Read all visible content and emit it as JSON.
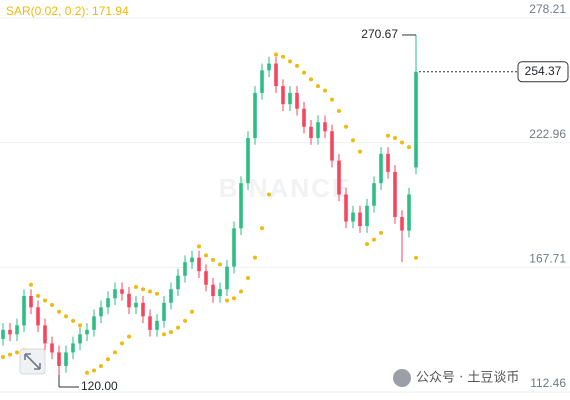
{
  "chart_data": {
    "type": "candlestick",
    "indicator_label": "SAR(0.02, 0.2): 171.94",
    "watermark": "BINANCE",
    "footer_watermark": "公众号 · 土豆谈币",
    "min_label": "120.00",
    "up_color": "#2ebd85",
    "down_color": "#f6465d",
    "sar_color": "#f0b90b",
    "ylim": [
      108.92,
      286.17
    ],
    "yticks": [
      278.21,
      222.96,
      167.71,
      112.46
    ],
    "grid": true,
    "open": [
      136,
      140,
      138,
      142,
      155,
      150,
      142,
      134,
      130,
      124,
      130,
      134,
      138,
      140,
      146,
      150,
      154,
      158,
      156,
      150,
      152,
      146,
      140,
      144,
      152,
      158,
      164,
      170,
      172,
      166,
      160,
      155,
      158,
      168,
      185,
      205,
      225,
      245,
      255,
      258,
      248,
      240,
      245,
      238,
      230,
      225,
      232,
      228,
      215,
      200,
      188,
      192,
      186,
      195,
      205,
      218,
      210,
      190,
      184,
      212
    ],
    "high": [
      143,
      143,
      145,
      158,
      158,
      153,
      145,
      137,
      133,
      133,
      137,
      141,
      143,
      149,
      153,
      157,
      161,
      161,
      159,
      155,
      155,
      149,
      147,
      155,
      161,
      167,
      173,
      175,
      175,
      169,
      163,
      161,
      171,
      188,
      208,
      228,
      248,
      258,
      261,
      261,
      251,
      248,
      248,
      241,
      233,
      235,
      235,
      231,
      218,
      203,
      195,
      195,
      198,
      208,
      221,
      221,
      213,
      193,
      203,
      270.67
    ],
    "low": [
      133,
      135,
      135,
      139,
      147,
      139,
      131,
      127,
      120,
      121,
      127,
      131,
      135,
      137,
      143,
      147,
      151,
      153,
      147,
      147,
      143,
      137,
      137,
      141,
      149,
      155,
      161,
      167,
      163,
      157,
      152,
      152,
      155,
      165,
      182,
      202,
      222,
      242,
      252,
      245,
      237,
      237,
      235,
      227,
      222,
      222,
      225,
      212,
      197,
      185,
      185,
      183,
      183,
      192,
      202,
      207,
      187,
      170,
      181,
      209
    ],
    "close": [
      140,
      138,
      142,
      155,
      150,
      142,
      134,
      130,
      124,
      130,
      134,
      138,
      140,
      146,
      150,
      154,
      158,
      156,
      150,
      152,
      146,
      140,
      144,
      152,
      158,
      164,
      170,
      172,
      166,
      160,
      155,
      158,
      168,
      185,
      205,
      225,
      245,
      255,
      258,
      248,
      240,
      245,
      238,
      230,
      225,
      232,
      228,
      215,
      200,
      188,
      192,
      186,
      195,
      205,
      218,
      210,
      190,
      184,
      200,
      254.37
    ],
    "sar": [
      128,
      129,
      130,
      131,
      160,
      155,
      153,
      151,
      148,
      146,
      144,
      142,
      121,
      122,
      124,
      127,
      130,
      134,
      137,
      159,
      158,
      157,
      156,
      138,
      139,
      141,
      144,
      148,
      177,
      173,
      171,
      169,
      153,
      154,
      157,
      163,
      172,
      185,
      200,
      262,
      261,
      259,
      257,
      254,
      251,
      248,
      246,
      242,
      237,
      230,
      224,
      219,
      178,
      180,
      183,
      226,
      225,
      223,
      221,
      171.94
    ]
  }
}
